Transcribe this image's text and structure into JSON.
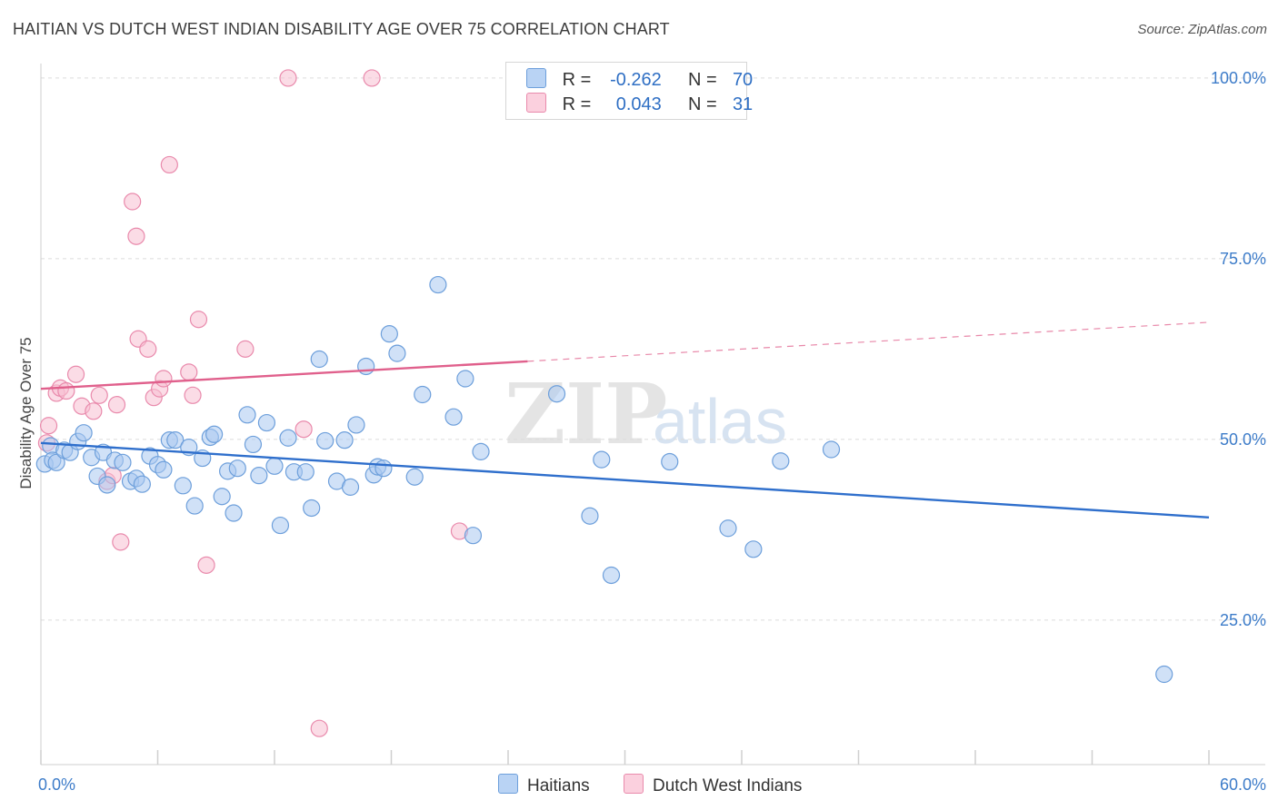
{
  "header": {
    "title": "HAITIAN VS DUTCH WEST INDIAN DISABILITY AGE OVER 75 CORRELATION CHART",
    "source": "Source: ZipAtlas.com"
  },
  "legend": {
    "rows": [
      {
        "r_label": "R =",
        "r_value": "-0.262",
        "n_label": "N =",
        "n_value": "70"
      },
      {
        "r_label": "R =",
        "r_value": "0.043",
        "n_label": "N =",
        "n_value": "31"
      }
    ]
  },
  "bottom_legend": {
    "haitians": "Haitians",
    "dutch": "Dutch West Indians"
  },
  "colors": {
    "haitians_fill": "#a9c8f0",
    "haitians_stroke": "#6d9fdb",
    "haitians_line": "#2f6fcc",
    "dutch_fill": "#f7bfd2",
    "dutch_stroke": "#e98aac",
    "dutch_line": "#e0608c",
    "tick_label": "#3d7cc9",
    "grid": "#dcdcdc"
  },
  "watermark": {
    "zip": "ZIP",
    "atlas": "atlas"
  },
  "chart_data": {
    "type": "scatter",
    "title": "HAITIAN VS DUTCH WEST INDIAN DISABILITY AGE OVER 75 CORRELATION CHART",
    "xlabel": "",
    "ylabel": "Disability Age Over 75",
    "xlim": [
      0,
      60
    ],
    "ylim": [
      5,
      102
    ],
    "x_tick_labels": [
      "0.0%",
      "60.0%"
    ],
    "y_ticks": [
      25,
      50,
      75,
      100
    ],
    "y_tick_labels": [
      "25.0%",
      "50.0%",
      "75.0%",
      "100.0%"
    ],
    "grid": true,
    "legend_position": "top-center",
    "series": [
      {
        "name": "Haitians",
        "points": [
          [
            0.2,
            46.6
          ],
          [
            0.5,
            49.1
          ],
          [
            0.6,
            47.1
          ],
          [
            0.8,
            46.8
          ],
          [
            1.2,
            48.5
          ],
          [
            1.5,
            48.2
          ],
          [
            1.9,
            49.7
          ],
          [
            2.2,
            50.9
          ],
          [
            2.6,
            47.5
          ],
          [
            2.9,
            44.9
          ],
          [
            3.2,
            48.2
          ],
          [
            3.4,
            43.7
          ],
          [
            3.8,
            47.1
          ],
          [
            4.2,
            46.8
          ],
          [
            4.6,
            44.2
          ],
          [
            4.9,
            44.6
          ],
          [
            5.2,
            43.8
          ],
          [
            5.6,
            47.7
          ],
          [
            6.0,
            46.5
          ],
          [
            6.3,
            45.8
          ],
          [
            6.6,
            49.9
          ],
          [
            6.9,
            49.9
          ],
          [
            7.3,
            43.6
          ],
          [
            7.6,
            48.9
          ],
          [
            7.9,
            40.8
          ],
          [
            8.3,
            47.4
          ],
          [
            8.7,
            50.3
          ],
          [
            8.9,
            50.7
          ],
          [
            9.3,
            42.1
          ],
          [
            9.6,
            45.6
          ],
          [
            9.9,
            39.8
          ],
          [
            10.1,
            46.0
          ],
          [
            10.6,
            53.4
          ],
          [
            10.9,
            49.3
          ],
          [
            11.2,
            45.0
          ],
          [
            11.6,
            52.3
          ],
          [
            12.0,
            46.3
          ],
          [
            12.3,
            38.1
          ],
          [
            12.7,
            50.2
          ],
          [
            13.0,
            45.5
          ],
          [
            13.6,
            45.5
          ],
          [
            13.9,
            40.5
          ],
          [
            14.3,
            61.1
          ],
          [
            14.6,
            49.8
          ],
          [
            15.2,
            44.2
          ],
          [
            15.6,
            49.9
          ],
          [
            15.9,
            43.4
          ],
          [
            16.2,
            52.0
          ],
          [
            16.7,
            60.1
          ],
          [
            17.1,
            45.1
          ],
          [
            17.3,
            46.2
          ],
          [
            17.6,
            46.0
          ],
          [
            17.9,
            64.6
          ],
          [
            18.3,
            61.9
          ],
          [
            19.2,
            44.8
          ],
          [
            19.6,
            56.2
          ],
          [
            20.4,
            71.4
          ],
          [
            21.2,
            53.1
          ],
          [
            21.8,
            58.4
          ],
          [
            22.2,
            36.7
          ],
          [
            22.6,
            48.3
          ],
          [
            26.5,
            56.3
          ],
          [
            28.2,
            39.4
          ],
          [
            28.8,
            47.2
          ],
          [
            29.3,
            31.2
          ],
          [
            32.3,
            46.9
          ],
          [
            35.3,
            37.7
          ],
          [
            36.6,
            34.8
          ],
          [
            38.0,
            47.0
          ],
          [
            40.6,
            48.6
          ],
          [
            57.7,
            17.5
          ]
        ]
      },
      {
        "name": "Dutch West Indians",
        "points": [
          [
            0.3,
            49.5
          ],
          [
            0.4,
            51.9
          ],
          [
            0.8,
            56.4
          ],
          [
            1.0,
            57.1
          ],
          [
            1.3,
            56.7
          ],
          [
            1.8,
            59.0
          ],
          [
            2.1,
            54.6
          ],
          [
            2.7,
            53.9
          ],
          [
            3.0,
            56.1
          ],
          [
            3.4,
            44.2
          ],
          [
            3.7,
            45.0
          ],
          [
            3.9,
            54.8
          ],
          [
            4.1,
            35.8
          ],
          [
            4.7,
            82.9
          ],
          [
            4.9,
            78.1
          ],
          [
            5.0,
            63.9
          ],
          [
            5.5,
            62.5
          ],
          [
            5.8,
            55.8
          ],
          [
            6.1,
            57.0
          ],
          [
            6.3,
            58.4
          ],
          [
            6.6,
            88.0
          ],
          [
            7.6,
            59.3
          ],
          [
            7.8,
            56.1
          ],
          [
            8.1,
            66.6
          ],
          [
            8.5,
            32.6
          ],
          [
            10.5,
            62.5
          ],
          [
            12.7,
            100
          ],
          [
            13.5,
            51.4
          ],
          [
            14.3,
            10.0
          ],
          [
            17.0,
            100
          ],
          [
            21.5,
            37.3
          ]
        ]
      }
    ],
    "trend_lines": [
      {
        "series": "Haitians",
        "x0": 0,
        "y0": 49.5,
        "x1": 60,
        "y1": 39.2,
        "style": "solid"
      },
      {
        "series": "Dutch West Indians",
        "x0": 0,
        "y0": 57.0,
        "x1": 25,
        "y1": 60.8,
        "style": "solid"
      },
      {
        "series": "Dutch West Indians",
        "x0": 25,
        "y0": 60.8,
        "x1": 60,
        "y1": 66.2,
        "style": "dashed"
      }
    ]
  }
}
